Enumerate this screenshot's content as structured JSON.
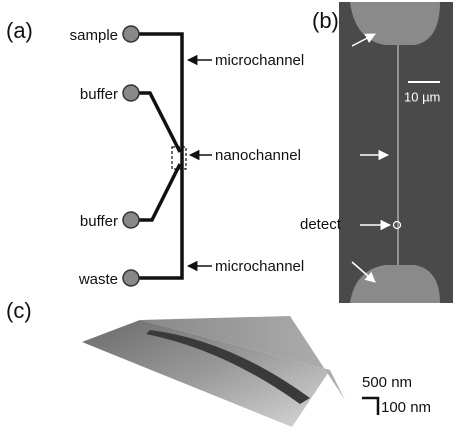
{
  "panel_a": {
    "label": "(a)",
    "ports": [
      "sample",
      "buffer",
      "buffer",
      "waste"
    ],
    "channel_labels": [
      "microchannel",
      "nanochannel",
      "microchannel"
    ]
  },
  "panel_b": {
    "label": "(b)",
    "scale_bar": "10 µm",
    "detect": "detect"
  },
  "panel_c": {
    "label": "(c)",
    "scale_x": "500 nm",
    "scale_z": "100 nm"
  }
}
